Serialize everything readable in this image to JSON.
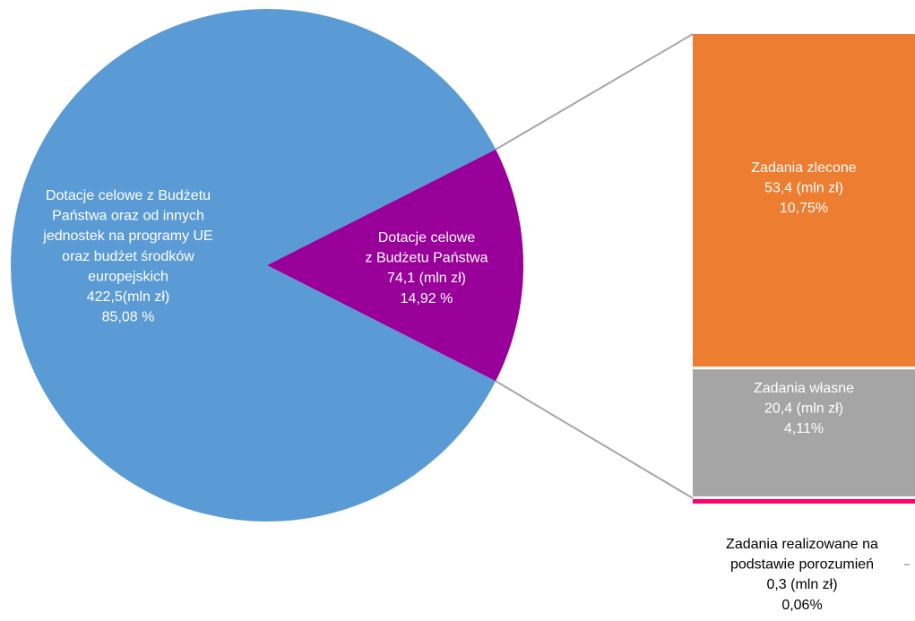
{
  "chart_data": {
    "type": "pie",
    "subtype": "pie-of-bar",
    "slices": [
      {
        "id": "eu",
        "label_lines": [
          "Dotacje celowe  z Budżetu",
          "Państwa oraz  od innych",
          "jednostek na programy UE",
          "oraz budżet środków",
          "europejskich"
        ],
        "value_text": "422,5(mln zł)",
        "percent_text": "85,08 %",
        "value": 422.5,
        "percent": 85.08,
        "color": "#5B9BD5",
        "text_color": "#ffffff"
      },
      {
        "id": "state",
        "label_lines": [
          "Dotacje celowe",
          "z Budżetu Państwa"
        ],
        "value_text": "74,1 (mln zł)",
        "percent_text": "14,92 %",
        "value": 74.1,
        "percent": 14.92,
        "color": "#990099",
        "text_color": "#ffffff"
      }
    ],
    "breakdown": {
      "of_slice": "state",
      "segments": [
        {
          "id": "zlecone",
          "label_lines": [
            "Zadania zlecone"
          ],
          "value_text": "53,4 (mln zł)",
          "percent_text": "10,75%",
          "value": 53.4,
          "percent": 10.75,
          "color": "#ED7D31",
          "text_color": "#ffffff"
        },
        {
          "id": "wlasne",
          "label_lines": [
            "Zadania własne"
          ],
          "value_text": "20,4 (mln zł)",
          "percent_text": "4,11%",
          "value": 20.4,
          "percent": 4.11,
          "color": "#A5A5A5",
          "text_color": "#ffffff"
        },
        {
          "id": "porozumienia",
          "label_lines": [
            "Zadania realizowane na",
            "podstawie porozumień"
          ],
          "value_text": "0,3 (mln zł)",
          "percent_text": "0,06%",
          "value": 0.3,
          "percent": 0.06,
          "color": "#FF0066",
          "text_color": "#000000"
        }
      ]
    },
    "connector_color": "#A6A6A6"
  }
}
